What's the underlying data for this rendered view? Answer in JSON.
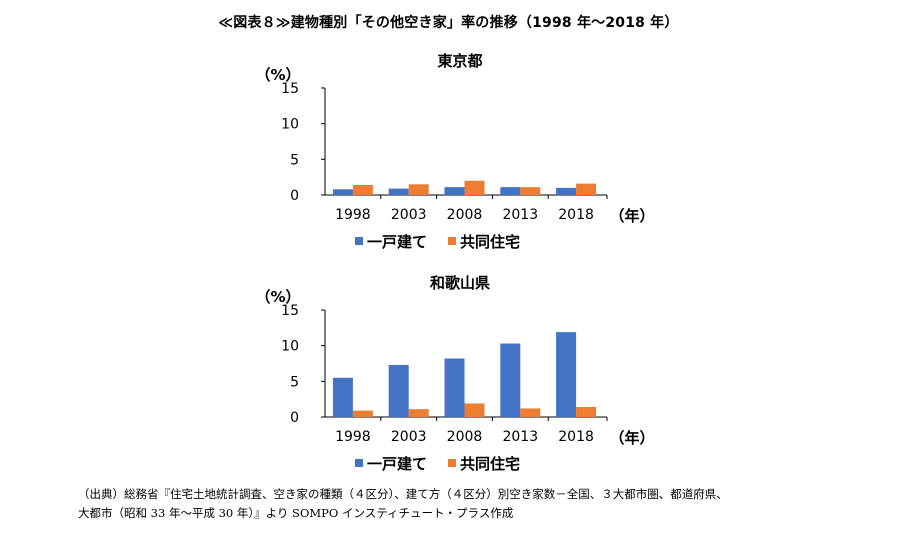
{
  "figure_title": "≪図表８≫建物種別「その他空き家」率の推移（1998 年～2018 年）",
  "source_line_1": "（出典）総務省『住宅土地統計調査、空き家の種類（４区分）、建て方（４区分）別空き家数－全国、３大都市圏、都道府県、",
  "source_line_2": "大都市（昭和 33 年～平成 30 年）』より SOMPO インスティチュート・プラス作成",
  "colors": {
    "detached": "#4472c4",
    "collective": "#ed7d31",
    "axis": "#000000"
  },
  "chart_data": [
    {
      "type": "bar",
      "title": "東京都",
      "ylabel": "（%）",
      "xlabel": "（年）",
      "categories": [
        "1998",
        "2003",
        "2008",
        "2013",
        "2018"
      ],
      "ylim": [
        0,
        15
      ],
      "yticks": [
        "0",
        "5",
        "10",
        "15"
      ],
      "grid": false,
      "legend_position": "bottom",
      "series": [
        {
          "name": "一戸建て",
          "values": [
            0.8,
            0.9,
            1.1,
            1.1,
            1.0
          ]
        },
        {
          "name": "共同住宅",
          "values": [
            1.4,
            1.5,
            2.0,
            1.1,
            1.6
          ]
        }
      ]
    },
    {
      "type": "bar",
      "title": "和歌山県",
      "ylabel": "（%）",
      "xlabel": "（年）",
      "categories": [
        "1998",
        "2003",
        "2008",
        "2013",
        "2018"
      ],
      "ylim": [
        0,
        15
      ],
      "yticks": [
        "0",
        "5",
        "10",
        "15"
      ],
      "grid": false,
      "legend_position": "bottom",
      "series": [
        {
          "name": "一戸建て",
          "values": [
            5.5,
            7.3,
            8.2,
            10.3,
            11.9
          ]
        },
        {
          "name": "共同住宅",
          "values": [
            0.9,
            1.1,
            1.9,
            1.2,
            1.4
          ]
        }
      ]
    }
  ]
}
